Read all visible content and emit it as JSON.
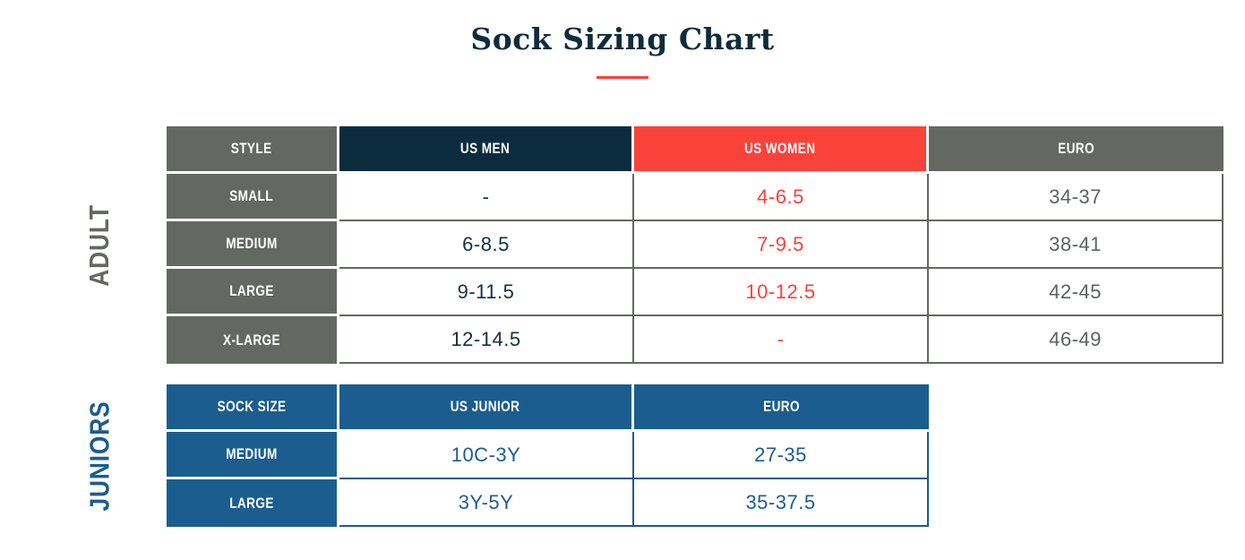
{
  "title": "Sock Sizing Chart",
  "colors": {
    "navy": "#0a2c3d",
    "red": "#f9423a",
    "olive_gray": "#636862",
    "blue": "#1b5d8e"
  },
  "adult": {
    "section_label": "ADULT",
    "style_header": "STYLE",
    "columns": [
      "US MEN",
      "US WOMEN",
      "EURO"
    ],
    "rows": [
      {
        "style": "SMALL",
        "us_men": "-",
        "us_women": "4-6.5",
        "euro": "34-37"
      },
      {
        "style": "MEDIUM",
        "us_men": "6-8.5",
        "us_women": "7-9.5",
        "euro": "38-41"
      },
      {
        "style": "LARGE",
        "us_men": "9-11.5",
        "us_women": "10-12.5",
        "euro": "42-45"
      },
      {
        "style": "X-LARGE",
        "us_men": "12-14.5",
        "us_women": "-",
        "euro": "46-49"
      }
    ]
  },
  "juniors": {
    "section_label": "JUNIORS",
    "size_header": "SOCK SIZE",
    "columns": [
      "US JUNIOR",
      "EURO"
    ],
    "rows": [
      {
        "size": "MEDIUM",
        "us_junior": "10C-3Y",
        "euro": "27-35"
      },
      {
        "size": "LARGE",
        "us_junior": "3Y-5Y",
        "euro": "35-37.5"
      }
    ]
  },
  "chart_data": [
    {
      "type": "table",
      "title": "Sock Sizing Chart",
      "section": "ADULT",
      "columns": [
        "STYLE",
        "US MEN",
        "US WOMEN",
        "EURO"
      ],
      "rows": [
        [
          "SMALL",
          "-",
          "4-6.5",
          "34-37"
        ],
        [
          "MEDIUM",
          "6-8.5",
          "7-9.5",
          "38-41"
        ],
        [
          "LARGE",
          "9-11.5",
          "10-12.5",
          "42-45"
        ],
        [
          "X-LARGE",
          "12-14.5",
          "-",
          "46-49"
        ]
      ]
    },
    {
      "type": "table",
      "title": "Sock Sizing Chart",
      "section": "JUNIORS",
      "columns": [
        "SOCK SIZE",
        "US JUNIOR",
        "EURO"
      ],
      "rows": [
        [
          "MEDIUM",
          "10C-3Y",
          "27-35"
        ],
        [
          "LARGE",
          "3Y-5Y",
          "35-37.5"
        ]
      ]
    }
  ]
}
